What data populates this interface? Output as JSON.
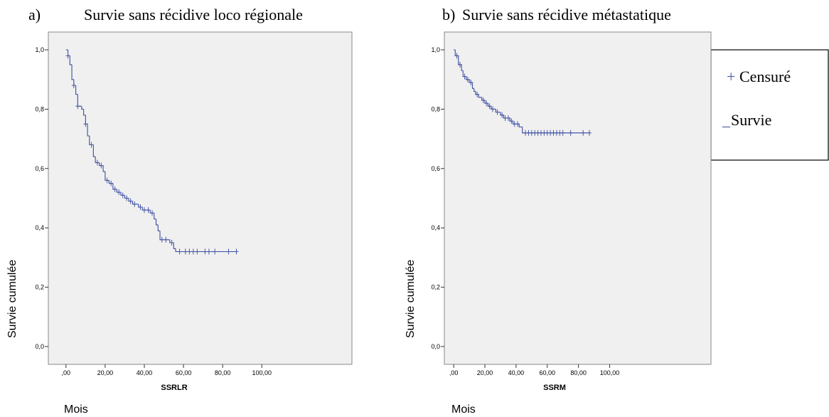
{
  "chart_data": [
    {
      "type": "step",
      "label": "a)",
      "title": "Survie sans récidive loco régionale",
      "xlabel": "SSRLR",
      "ylabel": "Survie cumulée",
      "x_note": "Mois",
      "color": "#4a5aa6",
      "x": [
        0,
        1,
        2,
        3,
        4,
        5,
        6,
        8,
        9,
        10,
        11,
        12,
        14,
        15,
        17,
        19,
        20,
        22,
        24,
        26,
        28,
        30,
        32,
        34,
        37,
        39,
        43,
        45,
        46,
        47,
        48,
        53,
        55,
        56,
        87
      ],
      "values": [
        1,
        0.98,
        0.95,
        0.9,
        0.88,
        0.85,
        0.81,
        0.8,
        0.78,
        0.75,
        0.71,
        0.68,
        0.64,
        0.62,
        0.61,
        0.59,
        0.56,
        0.55,
        0.53,
        0.52,
        0.51,
        0.5,
        0.49,
        0.48,
        0.47,
        0.46,
        0.45,
        0.43,
        0.41,
        0.39,
        0.36,
        0.35,
        0.33,
        0.32,
        0.32
      ],
      "censored": {
        "x": [
          1,
          4,
          6,
          10,
          13,
          16,
          18,
          21,
          23,
          25,
          27,
          29,
          31,
          33,
          35,
          38,
          40,
          42,
          44,
          49,
          51,
          54,
          58,
          61,
          63,
          65,
          67,
          71,
          73,
          76,
          83,
          87
        ],
        "values": [
          0.98,
          0.88,
          0.81,
          0.75,
          0.68,
          0.62,
          0.61,
          0.56,
          0.55,
          0.53,
          0.52,
          0.51,
          0.5,
          0.49,
          0.48,
          0.47,
          0.46,
          0.46,
          0.45,
          0.36,
          0.36,
          0.35,
          0.32,
          0.32,
          0.32,
          0.32,
          0.32,
          0.32,
          0.32,
          0.32,
          0.32,
          0.32
        ]
      },
      "xlim": [
        -9,
        146
      ],
      "ylim": [
        -0.06,
        1.06
      ],
      "xticks": [
        {
          "value": 0,
          "label": ",00"
        },
        {
          "value": 20,
          "label": "20,00"
        },
        {
          "value": 40,
          "label": "40,00"
        },
        {
          "value": 60,
          "label": "60,00"
        },
        {
          "value": 80,
          "label": "80,00"
        },
        {
          "value": 100,
          "label": "100,00"
        }
      ],
      "yticks": [
        {
          "value": 0,
          "label": "0,0"
        },
        {
          "value": 0.2,
          "label": "0,2"
        },
        {
          "value": 0.4,
          "label": "0,4"
        },
        {
          "value": 0.6,
          "label": "0,6"
        },
        {
          "value": 0.8,
          "label": "0,8"
        },
        {
          "value": 1,
          "label": "1,0"
        }
      ]
    },
    {
      "type": "step",
      "label": "b)",
      "title": "Survie sans récidive métastatique",
      "xlabel": "SSRM",
      "ylabel": "Survie cumulée",
      "x_note": "Mois",
      "color": "#4a5aa6",
      "x": [
        0,
        1,
        3,
        5,
        6,
        8,
        10,
        12,
        13,
        14,
        16,
        18,
        20,
        22,
        24,
        27,
        30,
        32,
        36,
        38,
        42,
        44,
        87
      ],
      "values": [
        1,
        0.98,
        0.95,
        0.93,
        0.91,
        0.9,
        0.89,
        0.87,
        0.86,
        0.85,
        0.84,
        0.83,
        0.82,
        0.81,
        0.8,
        0.79,
        0.78,
        0.77,
        0.76,
        0.75,
        0.74,
        0.72,
        0.72
      ],
      "censored": {
        "x": [
          2,
          4,
          7,
          9,
          11,
          15,
          19,
          21,
          23,
          25,
          28,
          31,
          33,
          35,
          37,
          39,
          41,
          46,
          48,
          50,
          52,
          54,
          56,
          58,
          60,
          62,
          64,
          66,
          68,
          70,
          75,
          83,
          87
        ],
        "values": [
          0.98,
          0.95,
          0.91,
          0.9,
          0.89,
          0.85,
          0.83,
          0.82,
          0.81,
          0.8,
          0.79,
          0.78,
          0.77,
          0.77,
          0.76,
          0.75,
          0.75,
          0.72,
          0.72,
          0.72,
          0.72,
          0.72,
          0.72,
          0.72,
          0.72,
          0.72,
          0.72,
          0.72,
          0.72,
          0.72,
          0.72,
          0.72,
          0.72
        ]
      },
      "xlim": [
        -6,
        165
      ],
      "ylim": [
        -0.06,
        1.06
      ],
      "xticks": [
        {
          "value": 0,
          "label": ",00"
        },
        {
          "value": 20,
          "label": "20,00"
        },
        {
          "value": 40,
          "label": "40,00"
        },
        {
          "value": 60,
          "label": "60,00"
        },
        {
          "value": 80,
          "label": "80,00"
        },
        {
          "value": 100,
          "label": "100,00"
        }
      ],
      "yticks": [
        {
          "value": 0,
          "label": "0,0"
        },
        {
          "value": 0.2,
          "label": "0,2"
        },
        {
          "value": 0.4,
          "label": "0,4"
        },
        {
          "value": 0.6,
          "label": "0,6"
        },
        {
          "value": 0.8,
          "label": "0,8"
        },
        {
          "value": 1,
          "label": "1,0"
        }
      ]
    }
  ],
  "legend": {
    "censored_symbol": "+",
    "censored": "Censuré",
    "survival_symbol": "_",
    "survival": "Survie"
  }
}
